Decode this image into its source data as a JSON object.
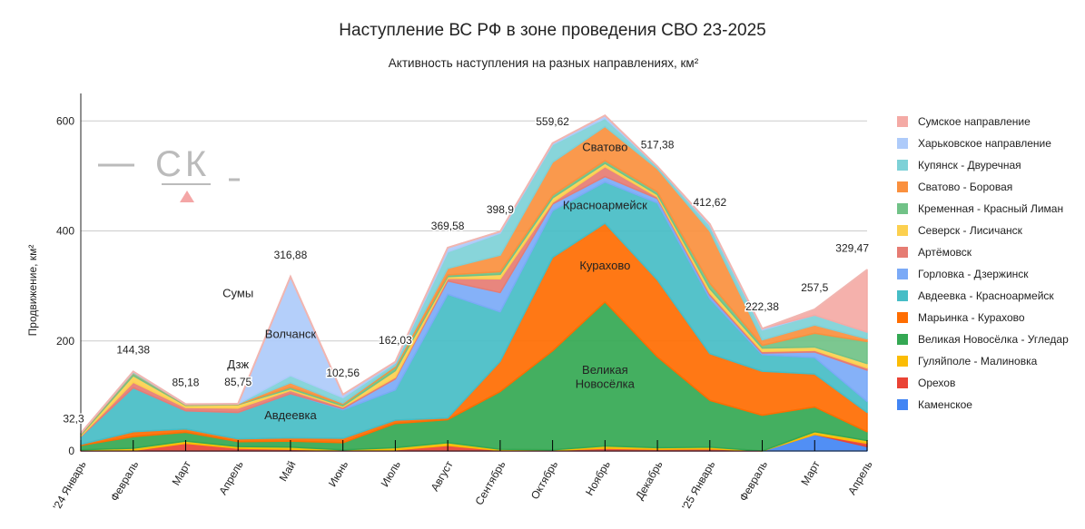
{
  "chart_data": {
    "type": "area",
    "stacked": true,
    "title": "Наступление ВС РФ в зоне проведения СВО 23-2025",
    "subtitle": "Активность наступления на разных направлениях, км²",
    "xlabel": "",
    "ylabel": "Продвижение, км²",
    "ylim": [
      0,
      650
    ],
    "yticks": [
      0,
      200,
      400,
      600
    ],
    "grid": true,
    "legend_position": "right",
    "categories": [
      "'24 Январь",
      "Февраль",
      "Март",
      "Апрель",
      "Май",
      "Июнь",
      "Июль",
      "Август",
      "Сентябрь",
      "Октябрь",
      "Ноябрь",
      "Декабрь",
      "'25 Январь",
      "Февраль",
      "Март",
      "Апрель"
    ],
    "total_labels": [
      "32,3",
      "144,38",
      "85,18",
      "85,75",
      "316,88",
      "102,56",
      "162,03",
      "369,58",
      "398,9",
      "559,62",
      "",
      "517,38",
      "412,62",
      "222,38",
      "257,5",
      "329,47"
    ],
    "series": [
      {
        "name": "Каменское",
        "color": "#4285f4",
        "values": [
          0,
          0,
          0,
          0,
          0,
          0,
          0,
          0,
          0,
          0,
          0,
          0,
          0,
          0,
          30,
          8
        ]
      },
      {
        "name": "Орехов",
        "color": "#ea4335",
        "values": [
          1,
          1,
          14,
          5,
          3,
          1,
          2,
          10,
          1,
          1,
          5,
          3,
          4,
          0,
          0,
          6
        ]
      },
      {
        "name": "Гуляйполе - Малиновка",
        "color": "#fbbc04",
        "values": [
          1,
          4,
          4,
          3,
          4,
          1,
          4,
          5,
          2,
          1,
          4,
          3,
          3,
          0,
          5,
          5
        ]
      },
      {
        "name": "Великая Новосёлка - Угледар",
        "color": "#34a853",
        "values": [
          8,
          21,
          16,
          9,
          11,
          13,
          44,
          42,
          105,
          180,
          262,
          165,
          85,
          65,
          45,
          16
        ]
      },
      {
        "name": "Марьинка - Курахово",
        "color": "#ff6d01",
        "values": [
          2,
          9,
          6,
          5,
          6,
          8,
          6,
          3,
          55,
          170,
          143,
          140,
          85,
          80,
          60,
          35
        ]
      },
      {
        "name": "Авдеевка - Красноармейск",
        "color": "#46bdc6",
        "values": [
          14,
          80,
          33,
          48,
          80,
          52,
          55,
          225,
          90,
          85,
          75,
          140,
          100,
          30,
          30,
          20
        ]
      },
      {
        "name": "Горловка - Дзержинск",
        "color": "#7baaf7",
        "values": [
          0,
          0,
          0,
          0,
          0,
          2,
          20,
          24,
          35,
          12,
          10,
          8,
          6,
          3,
          10,
          57
        ]
      },
      {
        "name": "Артёмовск",
        "color": "#e67c73",
        "values": [
          1,
          10,
          6,
          8,
          6,
          3,
          3,
          5,
          25,
          3,
          18,
          3,
          4,
          3,
          3,
          4
        ]
      },
      {
        "name": "Северск - Лисичанск",
        "color": "#fcd04f",
        "values": [
          2,
          12,
          4,
          6,
          3,
          2,
          12,
          3,
          8,
          8,
          6,
          4,
          8,
          6,
          6,
          8
        ]
      },
      {
        "name": "Кременная - Красный Лиман",
        "color": "#71c287",
        "values": [
          2,
          4,
          1,
          1,
          3,
          3,
          6,
          3,
          5,
          5,
          5,
          5,
          10,
          5,
          25,
          40
        ]
      },
      {
        "name": "Сватово - Боровая",
        "color": "#fa903e",
        "values": [
          1,
          1,
          0.5,
          0.75,
          8,
          2,
          3,
          12,
          30,
          60,
          62,
          42,
          95,
          10,
          15,
          5
        ]
      },
      {
        "name": "Купянск - Двуречная",
        "color": "#7ed1d7",
        "values": [
          0.3,
          2.38,
          0.68,
          0,
          13,
          10,
          5,
          30,
          40,
          32,
          15,
          4,
          10,
          18,
          18,
          12
        ]
      },
      {
        "name": "Харьковское направление",
        "color": "#aecbfa",
        "values": [
          0,
          0,
          0,
          0,
          179.88,
          5.56,
          2.03,
          7.58,
          2.9,
          2.62,
          5,
          0.38,
          2.62,
          2.38,
          0,
          0
        ]
      },
      {
        "name": "Сумское направление",
        "color": "#f4aaa5",
        "values": [
          0,
          0,
          0,
          0,
          0,
          0,
          0,
          0,
          0,
          0,
          0,
          0,
          0,
          0,
          10.5,
          113.47
        ]
      }
    ],
    "annotations": [
      {
        "text": "Волчанск",
        "category": "Май",
        "value": 205
      },
      {
        "text": "Авдеевка",
        "category": "Май",
        "value": 58
      },
      {
        "text": "Красноармейск",
        "category": "Ноябрь",
        "value": 440
      },
      {
        "text": "Курахово",
        "category": "Ноябрь",
        "value": 330
      },
      {
        "text": "Великая",
        "category": "Ноябрь",
        "value": 140
      },
      {
        "text": "Новосёлка",
        "category": "Ноябрь",
        "value": 115
      },
      {
        "text": "Сватово",
        "category": "Ноябрь",
        "value": 545
      },
      {
        "text": "Сумы",
        "category": "Апрель",
        "value": 280
      },
      {
        "text": "Дзж",
        "category": "Апрель",
        "value": 150
      }
    ]
  },
  "watermark": {
    "text": "СК"
  }
}
